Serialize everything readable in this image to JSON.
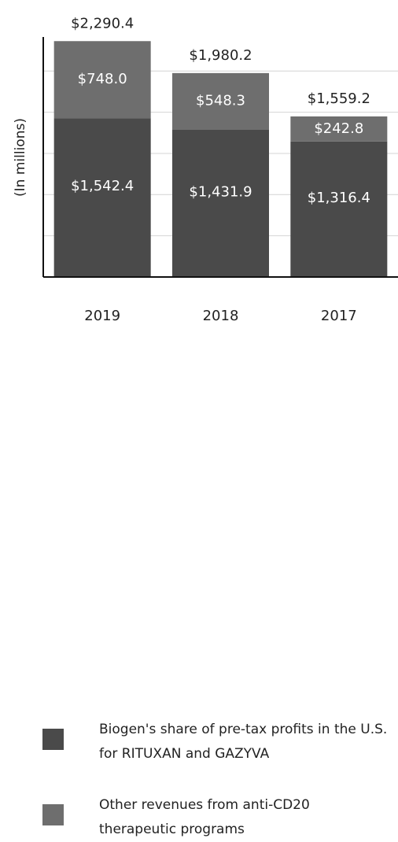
{
  "chart_data": {
    "type": "bar",
    "stacked": true,
    "y_label": "(In millions)",
    "categories": [
      "2019",
      "2018",
      "2017"
    ],
    "series": [
      {
        "name": "Biogen's share of pre-tax profits in the U.S. for RITUXAN and GAZYVA",
        "color": "#4a4a4a",
        "values": [
          1542.4,
          1431.9,
          1316.4
        ],
        "value_labels": [
          "$1,542.4",
          "$1,431.9",
          "$1,316.4"
        ]
      },
      {
        "name": "Other revenues from anti-CD20 therapeutic programs",
        "color": "#6e6e6e",
        "values": [
          748.0,
          548.3,
          242.8
        ],
        "value_labels": [
          "$748.0",
          "$548.3",
          "$242.8"
        ]
      }
    ],
    "totals": [
      {
        "value": 2290.4,
        "label": "$2,290.4"
      },
      {
        "value": 1980.2,
        "label": "$1,980.2"
      },
      {
        "value": 1559.2,
        "label": "$1,559.2"
      }
    ],
    "ylim": [
      0,
      2300
    ],
    "yticks": [
      0,
      400,
      800,
      1200,
      1600,
      2000
    ],
    "grid": true
  }
}
